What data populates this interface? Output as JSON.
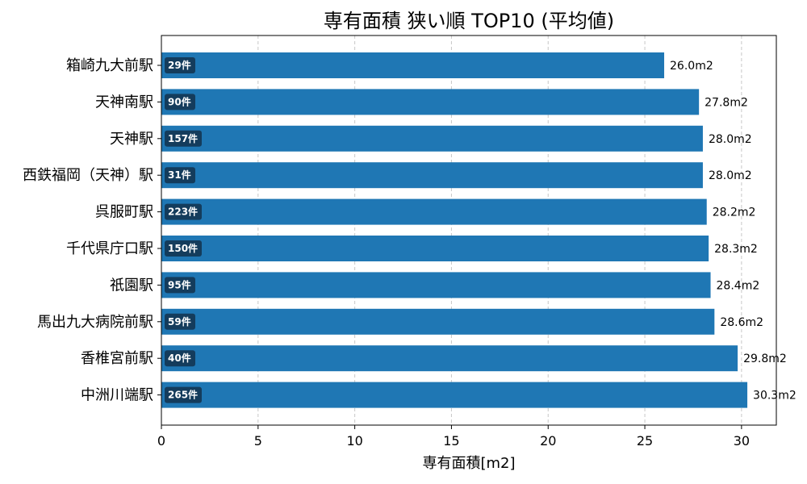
{
  "chart_data": {
    "type": "bar",
    "orientation": "horizontal",
    "title": "専有面積 狭い順 TOP10 (平均値)",
    "xlabel": "専有面積[m2]",
    "ylabel": "",
    "xlim": [
      0,
      31.8
    ],
    "xticks": [
      0,
      5,
      10,
      15,
      20,
      25,
      30
    ],
    "grid": "x-dashed",
    "bar_color": "#1f77b4",
    "badge_color": "#143c5c",
    "categories": [
      "箱崎九大前駅",
      "天神南駅",
      "天神駅",
      "西鉄福岡（天神）駅",
      "呉服町駅",
      "千代県庁口駅",
      "祇園駅",
      "馬出九大病院前駅",
      "香椎宮前駅",
      "中洲川端駅"
    ],
    "values": [
      26.0,
      27.8,
      28.0,
      28.0,
      28.2,
      28.3,
      28.4,
      28.6,
      29.8,
      30.3
    ],
    "value_labels": [
      "26.0m2",
      "27.8m2",
      "28.0m2",
      "28.0m2",
      "28.2m2",
      "28.3m2",
      "28.4m2",
      "28.6m2",
      "29.8m2",
      "30.3m2"
    ],
    "counts": [
      "29件",
      "90件",
      "157件",
      "31件",
      "223件",
      "150件",
      "95件",
      "59件",
      "40件",
      "265件"
    ]
  }
}
